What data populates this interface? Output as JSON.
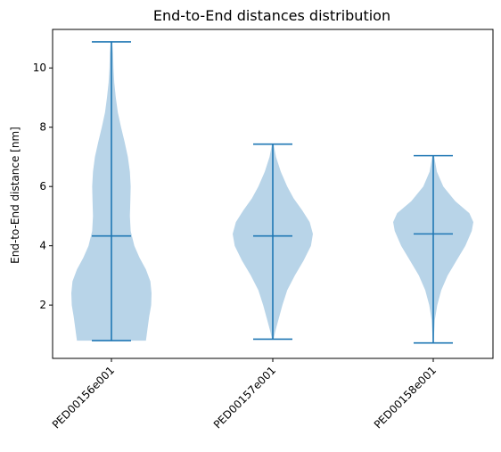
{
  "chart_data": {
    "type": "violin",
    "title": "End-to-End distances distribution",
    "xlabel": "",
    "ylabel": "End-to-End distance [nm]",
    "ylim": [
      0.2,
      11.3
    ],
    "yticks": [
      2,
      4,
      6,
      8,
      10
    ],
    "categories": [
      "PED00156e001",
      "PED00157e001",
      "PED00158e001"
    ],
    "grid": false,
    "colors": {
      "body": "#b8d4e8",
      "lines": "#1f77b4"
    },
    "violins": [
      {
        "name": "PED00156e001",
        "min": 0.8,
        "median": 4.33,
        "max": 10.88,
        "density": [
          [
            0.8,
            0.86
          ],
          [
            1.2,
            0.9
          ],
          [
            1.6,
            0.94
          ],
          [
            2.0,
            0.99
          ],
          [
            2.4,
            1.0
          ],
          [
            2.8,
            0.97
          ],
          [
            3.2,
            0.86
          ],
          [
            3.6,
            0.7
          ],
          [
            4.0,
            0.57
          ],
          [
            4.5,
            0.48
          ],
          [
            5.0,
            0.46
          ],
          [
            5.5,
            0.47
          ],
          [
            6.0,
            0.48
          ],
          [
            6.5,
            0.46
          ],
          [
            7.0,
            0.41
          ],
          [
            7.5,
            0.33
          ],
          [
            8.0,
            0.24
          ],
          [
            8.5,
            0.16
          ],
          [
            9.0,
            0.11
          ],
          [
            9.5,
            0.07
          ],
          [
            10.0,
            0.05
          ],
          [
            10.5,
            0.04
          ],
          [
            10.88,
            0.02
          ]
        ]
      },
      {
        "name": "PED00157e001",
        "min": 0.85,
        "median": 4.33,
        "max": 7.43,
        "density": [
          [
            0.85,
            0.02
          ],
          [
            1.1,
            0.06
          ],
          [
            1.5,
            0.14
          ],
          [
            2.0,
            0.24
          ],
          [
            2.5,
            0.36
          ],
          [
            3.0,
            0.55
          ],
          [
            3.5,
            0.77
          ],
          [
            4.0,
            0.95
          ],
          [
            4.4,
            1.0
          ],
          [
            4.8,
            0.92
          ],
          [
            5.2,
            0.73
          ],
          [
            5.6,
            0.52
          ],
          [
            6.0,
            0.36
          ],
          [
            6.5,
            0.2
          ],
          [
            7.0,
            0.08
          ],
          [
            7.43,
            0.02
          ]
        ]
      },
      {
        "name": "PED00158e001",
        "min": 0.72,
        "median": 4.4,
        "max": 7.04,
        "density": [
          [
            0.72,
            0.01
          ],
          [
            1.0,
            0.02
          ],
          [
            1.5,
            0.04
          ],
          [
            2.0,
            0.1
          ],
          [
            2.5,
            0.2
          ],
          [
            3.0,
            0.36
          ],
          [
            3.5,
            0.58
          ],
          [
            4.0,
            0.8
          ],
          [
            4.5,
            0.96
          ],
          [
            4.8,
            1.0
          ],
          [
            5.1,
            0.9
          ],
          [
            5.5,
            0.55
          ],
          [
            6.0,
            0.25
          ],
          [
            6.5,
            0.09
          ],
          [
            7.04,
            0.02
          ]
        ]
      }
    ]
  }
}
